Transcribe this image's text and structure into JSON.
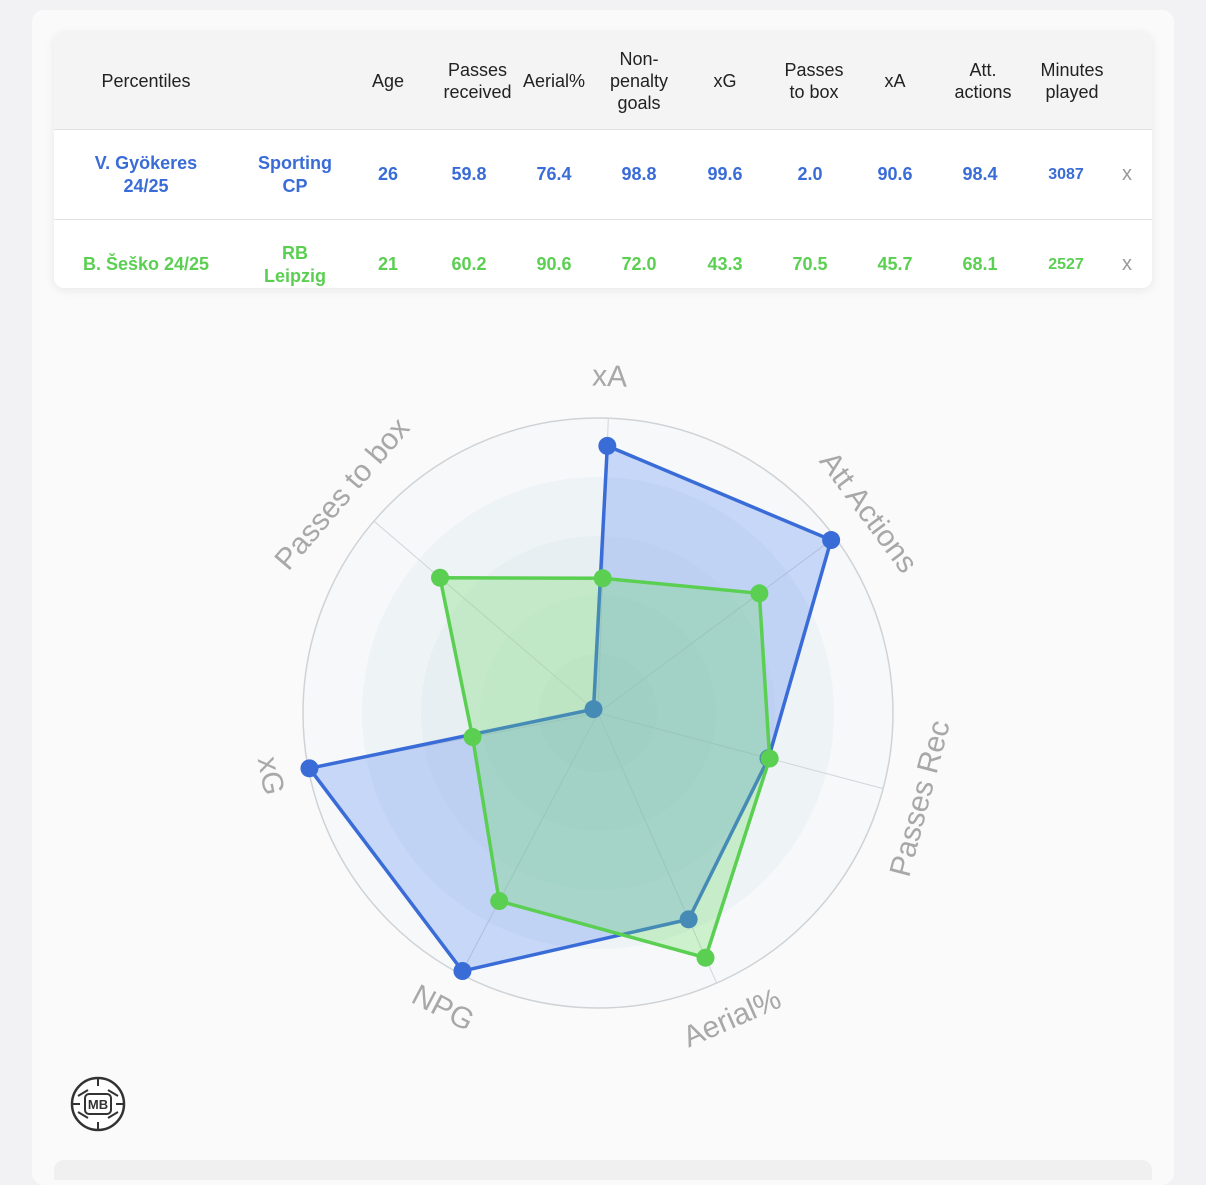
{
  "table": {
    "columns": [
      "Percentiles",
      "",
      "Age",
      "Passes\nreceived",
      "Aerial%",
      "Non-\npenalty\ngoals",
      "xG",
      "Passes\nto box",
      "xA",
      "Att.\nactions",
      "Minutes\nplayed"
    ],
    "rows": [
      {
        "player": "V. Gyökeres\n24/25",
        "team": "Sporting\nCP",
        "age": "26",
        "passes_received": "59.8",
        "aerial": "76.4",
        "npg": "98.8",
        "xg": "99.6",
        "passes_to_box": "2.0",
        "xa": "90.6",
        "att_actions": "98.4",
        "minutes": "3087",
        "remove": "x"
      },
      {
        "player": "B. Šeško 24/25",
        "team": "RB\nLeipzig",
        "age": "21",
        "passes_received": "60.2",
        "aerial": "90.6",
        "npg": "72.0",
        "xg": "43.3",
        "passes_to_box": "70.5",
        "xa": "45.7",
        "att_actions": "68.1",
        "minutes": "2527",
        "remove": "x"
      }
    ]
  },
  "chart_data": {
    "type": "radar",
    "axes": [
      "xA",
      "Att Actions",
      "Passes Rec",
      "Aerial%",
      "NPG",
      "xG",
      "Passes to box"
    ],
    "range": [
      0,
      100
    ],
    "series": [
      {
        "name": "V. Gyökeres 24/25",
        "color": "#3a6cd8",
        "fill": "rgba(80,130,240,0.28)",
        "values": [
          90.6,
          98.4,
          59.8,
          76.4,
          98.8,
          99.6,
          2.0
        ]
      },
      {
        "name": "B. Šeško 24/25",
        "color": "#5bcf52",
        "fill": "rgba(100,220,90,0.28)",
        "values": [
          45.7,
          68.1,
          60.2,
          90.6,
          72.0,
          43.3,
          70.5
        ]
      }
    ]
  },
  "logo": {
    "text": "MB"
  }
}
